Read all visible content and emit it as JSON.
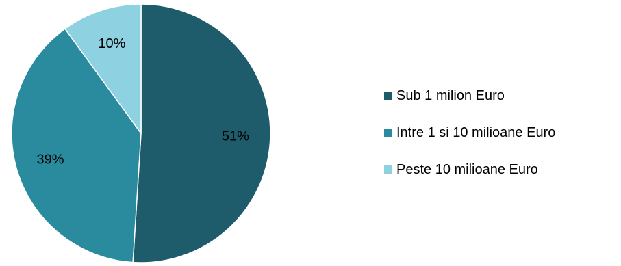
{
  "chart_data": {
    "type": "pie",
    "categories": [
      "Sub 1 milion Euro",
      "Intre 1 si 10 milioane Euro",
      "Peste 10 milioane Euro"
    ],
    "values": [
      51,
      39,
      10
    ],
    "data_labels": [
      "51%",
      "39%",
      "10%"
    ],
    "colors": [
      "#1F5C6B",
      "#2A8A9E",
      "#8ED1E1"
    ],
    "start_angle_deg": 0,
    "direction": "clockwise",
    "legend_position": "right"
  }
}
